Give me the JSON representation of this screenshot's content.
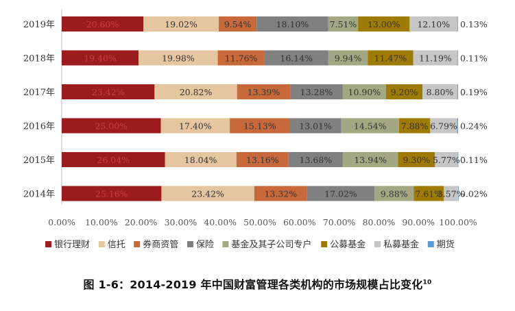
{
  "chart_data": {
    "type": "bar",
    "orientation": "horizontal",
    "stacked": "percent",
    "categories": [
      "2019年",
      "2018年",
      "2017年",
      "2016年",
      "2015年",
      "2014年"
    ],
    "series": [
      {
        "name": "银行理财",
        "color": "#9b1b1f",
        "values": [
          20.6,
          19.4,
          23.42,
          25.0,
          26.04,
          25.16
        ],
        "labels": [
          "20.60%",
          "19.40%",
          "23.42%",
          "25.00%",
          "26.04%",
          "25.16%"
        ]
      },
      {
        "name": "信托",
        "color": "#e6c5a1",
        "values": [
          19.02,
          19.98,
          20.82,
          17.4,
          18.04,
          23.42
        ],
        "labels": [
          "19.02%",
          "19.98%",
          "20.82%",
          "17.40%",
          "18.04%",
          "23.42%"
        ]
      },
      {
        "name": "券商资管",
        "color": "#c8693b",
        "values": [
          9.54,
          11.76,
          13.39,
          15.13,
          13.16,
          13.32
        ],
        "labels": [
          "9.54%",
          "11.76%",
          "13.39%",
          "15.13%",
          "13.16%",
          "13.32%"
        ]
      },
      {
        "name": "保险",
        "color": "#808080",
        "values": [
          18.1,
          16.14,
          13.28,
          13.01,
          13.68,
          17.02
        ],
        "labels": [
          "18.10%",
          "16.14%",
          "13.28%",
          "13.01%",
          "13.68%",
          "17.02%"
        ]
      },
      {
        "name": "基金及其子公司专户",
        "color": "#a3a883",
        "values": [
          7.51,
          9.94,
          10.9,
          14.54,
          13.94,
          9.88
        ],
        "labels": [
          "7.51%",
          "9.94%",
          "10.90%",
          "14.54%",
          "13.94%",
          "9.88%"
        ]
      },
      {
        "name": "公募基金",
        "color": "#9e7a06",
        "values": [
          13.0,
          11.47,
          9.2,
          7.88,
          9.3,
          7.61
        ],
        "labels": [
          "13.00%",
          "11.47%",
          "9.20%",
          "7.88%",
          "9.30%",
          "7.61%"
        ]
      },
      {
        "name": "私募基金",
        "color": "#c6c6c6",
        "values": [
          12.1,
          11.19,
          8.8,
          6.79,
          5.77,
          3.57
        ],
        "labels": [
          "12.10%",
          "11.19%",
          "8.80%",
          "6.79%",
          "5.77%",
          "3.57%"
        ]
      },
      {
        "name": "期货",
        "color": "#5b9bd5",
        "values": [
          0.13,
          0.11,
          0.19,
          0.24,
          0.11,
          0.02
        ],
        "labels": [
          "0.13%",
          "0.11%",
          "0.19%",
          "0.24%",
          "0.11%",
          "0.02%"
        ]
      }
    ],
    "x_ticks": [
      "0.00%",
      "10.00%",
      "20.00%",
      "30.00%",
      "40.00%",
      "50.00%",
      "60.00%",
      "70.00%",
      "80.00%",
      "90.00%",
      "100.00%"
    ],
    "xlim": [
      0,
      100
    ],
    "title": "",
    "xlabel": "",
    "ylabel": "",
    "grid": false,
    "legend_position": "bottom"
  },
  "caption": {
    "text": "图 1-6：2014-2019 年中国财富管理各类机构的市场规模占比变化",
    "footnote": "10"
  }
}
